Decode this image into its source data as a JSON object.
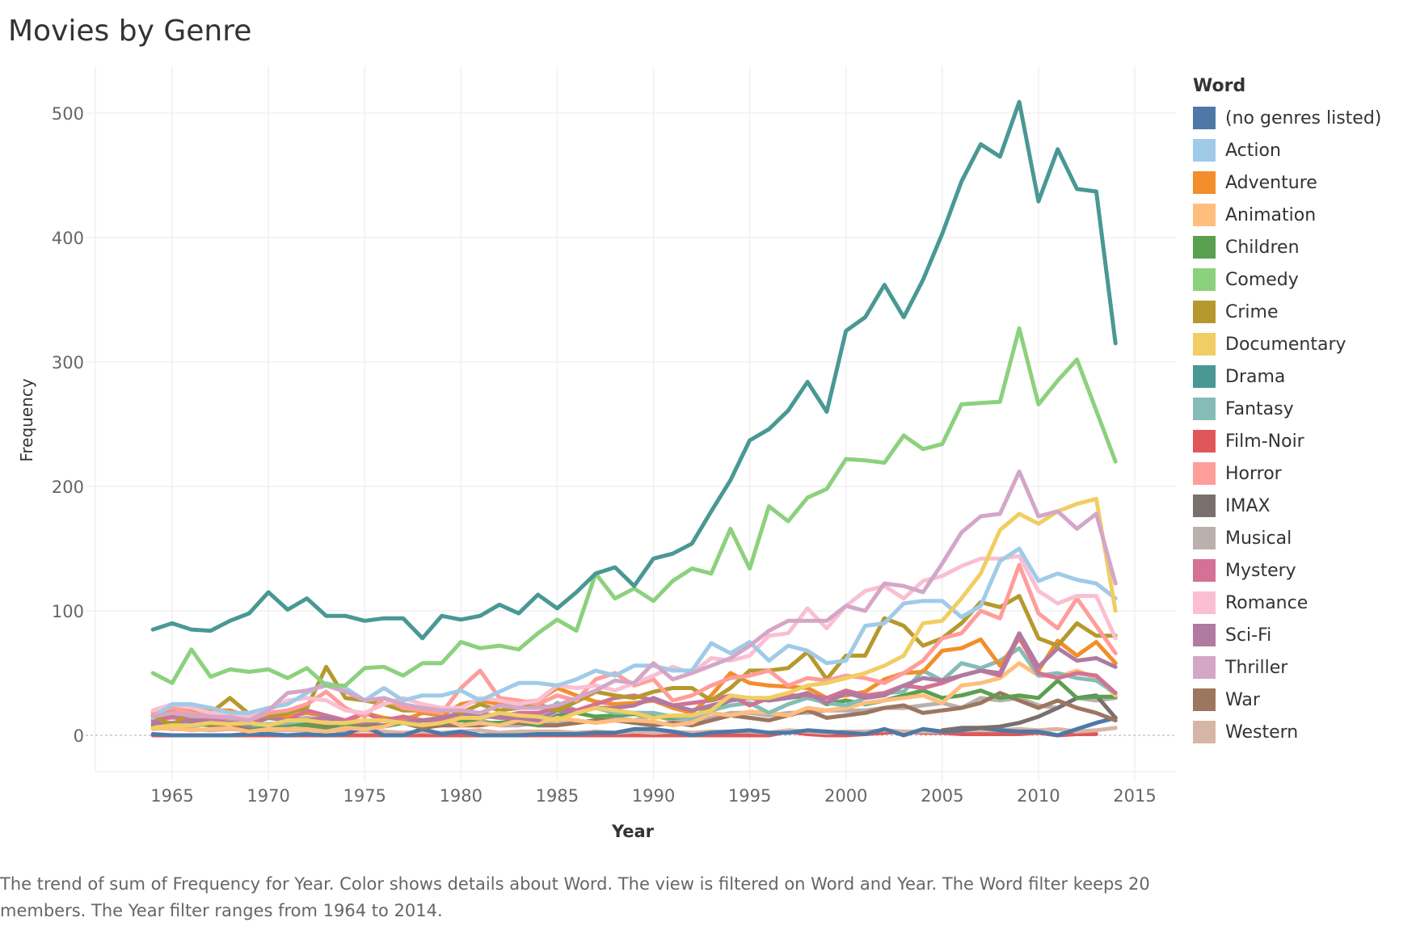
{
  "page": {
    "title": "Movies by Genre"
  },
  "caption": "The trend of sum of Frequency for Year.  Color shows details about Word. The view is filtered on Word and Year. The Word filter keeps 20 members. The Year filter ranges from 1964 to 2014.",
  "legend": {
    "title": "Word",
    "items": [
      {
        "label": "(no genres listed)",
        "color": "#4e79a7"
      },
      {
        "label": "Action",
        "color": "#a0cbe8"
      },
      {
        "label": "Adventure",
        "color": "#f28e2b"
      },
      {
        "label": "Animation",
        "color": "#ffbe7d"
      },
      {
        "label": "Children",
        "color": "#59a14f"
      },
      {
        "label": "Comedy",
        "color": "#8cd17d"
      },
      {
        "label": "Crime",
        "color": "#b6992d"
      },
      {
        "label": "Documentary",
        "color": "#f1ce63"
      },
      {
        "label": "Drama",
        "color": "#499894"
      },
      {
        "label": "Fantasy",
        "color": "#86bcb6"
      },
      {
        "label": "Film-Noir",
        "color": "#e15759"
      },
      {
        "label": "Horror",
        "color": "#ff9d9a"
      },
      {
        "label": "IMAX",
        "color": "#79706e"
      },
      {
        "label": "Musical",
        "color": "#bab0ac"
      },
      {
        "label": "Mystery",
        "color": "#d37295"
      },
      {
        "label": "Romance",
        "color": "#fabfd2"
      },
      {
        "label": "Sci-Fi",
        "color": "#b07aa1"
      },
      {
        "label": "Thriller",
        "color": "#d4a6c8"
      },
      {
        "label": "War",
        "color": "#9d7660"
      },
      {
        "label": "Western",
        "color": "#d7b5a6"
      }
    ]
  },
  "chart_data": {
    "type": "line",
    "title": "Movies by Genre",
    "xlabel": "Year",
    "ylabel": "Frequency",
    "xlim": [
      1960,
      2017
    ],
    "ylim": [
      -27,
      520
    ],
    "xticks": [
      1965,
      1970,
      1975,
      1980,
      1985,
      1990,
      1995,
      2000,
      2005,
      2010,
      2015
    ],
    "yticks": [
      0,
      100,
      200,
      300,
      400,
      500
    ],
    "grid": true,
    "legend_position": "right",
    "x": [
      1964,
      1965,
      1966,
      1967,
      1968,
      1969,
      1970,
      1971,
      1972,
      1973,
      1974,
      1975,
      1976,
      1977,
      1978,
      1979,
      1980,
      1981,
      1982,
      1983,
      1984,
      1985,
      1986,
      1987,
      1988,
      1989,
      1990,
      1991,
      1992,
      1993,
      1994,
      1995,
      1996,
      1997,
      1998,
      1999,
      2000,
      2001,
      2002,
      2003,
      2004,
      2005,
      2006,
      2007,
      2008,
      2009,
      2010,
      2011,
      2012,
      2013,
      2014
    ],
    "series": [
      {
        "name": "(no genres listed)",
        "values": [
          1,
          0,
          0,
          0,
          0,
          1,
          1,
          0,
          1,
          0,
          1,
          7,
          0,
          0,
          5,
          1,
          3,
          0,
          0,
          0,
          1,
          1,
          1,
          2,
          2,
          5,
          5,
          3,
          0,
          2,
          3,
          4,
          2,
          2,
          4,
          3,
          2,
          1,
          5,
          0,
          5,
          3,
          4,
          6,
          4,
          3,
          3,
          0,
          5,
          10,
          14
        ]
      },
      {
        "name": "Action",
        "values": [
          14,
          25,
          25,
          22,
          18,
          18,
          22,
          25,
          34,
          42,
          38,
          28,
          38,
          28,
          32,
          32,
          36,
          28,
          35,
          42,
          42,
          40,
          45,
          52,
          48,
          56,
          56,
          52,
          52,
          74,
          66,
          75,
          60,
          72,
          68,
          58,
          60,
          88,
          90,
          106,
          108,
          108,
          95,
          104,
          140,
          150,
          124,
          130,
          125,
          122,
          110
        ]
      },
      {
        "name": "Adventure",
        "values": [
          15,
          20,
          22,
          20,
          20,
          15,
          17,
          15,
          18,
          15,
          10,
          18,
          14,
          12,
          18,
          16,
          25,
          28,
          25,
          26,
          28,
          38,
          32,
          27,
          25,
          26,
          28,
          22,
          18,
          32,
          50,
          42,
          40,
          39,
          38,
          30,
          32,
          35,
          45,
          50,
          51,
          68,
          70,
          77,
          56,
          78,
          52,
          76,
          64,
          75,
          58
        ]
      },
      {
        "name": "Animation",
        "values": [
          5,
          6,
          4,
          5,
          6,
          3,
          5,
          5,
          5,
          3,
          6,
          5,
          7,
          12,
          10,
          14,
          8,
          10,
          8,
          12,
          10,
          14,
          12,
          10,
          12,
          12,
          11,
          8,
          10,
          18,
          16,
          19,
          18,
          16,
          22,
          20,
          22,
          26,
          28,
          30,
          32,
          26,
          40,
          42,
          46,
          58,
          48,
          47,
          52,
          46,
          32
        ]
      },
      {
        "name": "Children",
        "values": [
          6,
          8,
          8,
          9,
          10,
          7,
          7,
          9,
          8,
          5,
          7,
          6,
          7,
          10,
          8,
          12,
          12,
          10,
          10,
          12,
          8,
          16,
          18,
          15,
          16,
          17,
          15,
          14,
          15,
          22,
          28,
          30,
          28,
          30,
          32,
          25,
          28,
          25,
          28,
          32,
          36,
          30,
          32,
          36,
          30,
          32,
          30,
          44,
          30,
          31,
          31
        ]
      },
      {
        "name": "Comedy",
        "values": [
          50,
          42,
          69,
          47,
          53,
          51,
          53,
          46,
          54,
          40,
          40,
          54,
          55,
          48,
          58,
          58,
          75,
          70,
          72,
          69,
          82,
          93,
          84,
          130,
          110,
          118,
          108,
          124,
          134,
          130,
          166,
          134,
          184,
          172,
          191,
          198,
          222,
          221,
          219,
          241,
          230,
          234,
          266,
          267,
          268,
          327,
          266,
          285,
          302,
          261,
          220
        ]
      },
      {
        "name": "Crime",
        "values": [
          16,
          8,
          20,
          18,
          30,
          17,
          15,
          18,
          22,
          55,
          30,
          28,
          25,
          20,
          20,
          22,
          18,
          25,
          20,
          22,
          25,
          20,
          27,
          35,
          32,
          30,
          35,
          38,
          38,
          28,
          38,
          52,
          52,
          54,
          67,
          45,
          64,
          64,
          94,
          88,
          72,
          78,
          90,
          107,
          103,
          112,
          78,
          72,
          90,
          80,
          80
        ]
      },
      {
        "name": "Documentary",
        "values": [
          6,
          8,
          8,
          10,
          9,
          10,
          8,
          12,
          12,
          10,
          10,
          12,
          12,
          10,
          8,
          10,
          14,
          14,
          18,
          16,
          15,
          12,
          18,
          22,
          20,
          18,
          14,
          16,
          16,
          20,
          32,
          30,
          30,
          34,
          40,
          42,
          46,
          50,
          56,
          64,
          90,
          92,
          110,
          130,
          165,
          178,
          170,
          180,
          186,
          190,
          100
        ]
      },
      {
        "name": "Drama",
        "values": [
          85,
          90,
          85,
          84,
          92,
          98,
          115,
          101,
          110,
          96,
          96,
          92,
          94,
          94,
          78,
          96,
          93,
          96,
          105,
          98,
          113,
          102,
          115,
          130,
          135,
          120,
          142,
          146,
          154,
          180,
          205,
          237,
          246,
          261,
          284,
          260,
          325,
          336,
          362,
          336,
          366,
          403,
          445,
          475,
          465,
          509,
          429,
          471,
          439,
          437,
          315
        ]
      },
      {
        "name": "Fantasy",
        "values": [
          10,
          8,
          12,
          10,
          10,
          8,
          9,
          10,
          12,
          10,
          10,
          12,
          12,
          15,
          12,
          14,
          15,
          14,
          16,
          15,
          14,
          26,
          20,
          22,
          18,
          18,
          18,
          15,
          14,
          20,
          24,
          26,
          18,
          25,
          30,
          26,
          24,
          30,
          34,
          35,
          52,
          44,
          58,
          54,
          60,
          70,
          48,
          50,
          46,
          44,
          34
        ]
      },
      {
        "name": "Film-Noir",
        "values": [
          0,
          0,
          0,
          0,
          0,
          0,
          0,
          0,
          0,
          0,
          0,
          0,
          0,
          0,
          0,
          0,
          0,
          0,
          0,
          0,
          0,
          0,
          0,
          0,
          0,
          0,
          0,
          0,
          0,
          0,
          0,
          0,
          0,
          3,
          1,
          0,
          0,
          1,
          2,
          3,
          2,
          2,
          1,
          1,
          1,
          1,
          2,
          0,
          1,
          1,
          null
        ]
      },
      {
        "name": "Horror",
        "values": [
          18,
          22,
          18,
          15,
          15,
          12,
          18,
          20,
          25,
          35,
          22,
          15,
          30,
          22,
          20,
          18,
          38,
          52,
          30,
          28,
          25,
          32,
          28,
          45,
          50,
          40,
          45,
          28,
          32,
          40,
          46,
          48,
          52,
          40,
          46,
          44,
          48,
          46,
          42,
          50,
          60,
          78,
          82,
          100,
          94,
          137,
          98,
          86,
          110,
          88,
          66
        ]
      },
      {
        "name": "IMAX",
        "values": [
          null,
          null,
          null,
          null,
          null,
          null,
          null,
          null,
          null,
          null,
          null,
          null,
          null,
          null,
          null,
          null,
          null,
          null,
          null,
          null,
          null,
          null,
          null,
          null,
          null,
          null,
          null,
          null,
          null,
          null,
          null,
          null,
          null,
          null,
          null,
          null,
          null,
          null,
          null,
          null,
          null,
          4,
          6,
          6,
          7,
          10,
          15,
          22,
          30,
          32,
          14
        ]
      },
      {
        "name": "Musical",
        "values": [
          12,
          14,
          14,
          12,
          12,
          10,
          14,
          12,
          14,
          12,
          10,
          12,
          12,
          10,
          8,
          8,
          12,
          12,
          8,
          8,
          10,
          10,
          10,
          12,
          14,
          12,
          16,
          12,
          12,
          14,
          18,
          18,
          16,
          18,
          18,
          20,
          20,
          20,
          22,
          22,
          24,
          26,
          22,
          30,
          28,
          30,
          24,
          22,
          30,
          28,
          30
        ]
      },
      {
        "name": "Mystery",
        "values": [
          12,
          15,
          12,
          12,
          14,
          10,
          14,
          12,
          20,
          16,
          12,
          18,
          12,
          15,
          12,
          12,
          15,
          18,
          15,
          18,
          18,
          22,
          20,
          25,
          30,
          32,
          28,
          24,
          26,
          28,
          32,
          24,
          30,
          32,
          32,
          30,
          36,
          32,
          34,
          40,
          38,
          42,
          48,
          52,
          48,
          80,
          50,
          46,
          50,
          48,
          34
        ]
      },
      {
        "name": "Romance",
        "values": [
          20,
          25,
          22,
          18,
          18,
          15,
          20,
          28,
          30,
          28,
          20,
          18,
          25,
          30,
          25,
          22,
          22,
          30,
          28,
          25,
          28,
          40,
          38,
          40,
          36,
          42,
          48,
          55,
          50,
          62,
          60,
          64,
          80,
          82,
          102,
          86,
          104,
          116,
          120,
          110,
          124,
          128,
          136,
          142,
          142,
          144,
          116,
          106,
          112,
          112,
          78
        ]
      },
      {
        "name": "Sci-Fi",
        "values": [
          10,
          10,
          12,
          10,
          10,
          8,
          14,
          12,
          12,
          14,
          10,
          10,
          12,
          10,
          12,
          14,
          18,
          16,
          14,
          14,
          12,
          20,
          18,
          22,
          22,
          24,
          30,
          24,
          20,
          24,
          28,
          30,
          28,
          30,
          34,
          26,
          34,
          30,
          32,
          40,
          46,
          44,
          48,
          52,
          50,
          82,
          55,
          70,
          60,
          62,
          55
        ]
      },
      {
        "name": "Thriller",
        "values": [
          15,
          18,
          16,
          15,
          14,
          12,
          20,
          34,
          36,
          40,
          35,
          28,
          30,
          25,
          22,
          20,
          20,
          18,
          24,
          22,
          22,
          24,
          30,
          36,
          44,
          42,
          58,
          45,
          50,
          56,
          62,
          72,
          84,
          92,
          92,
          92,
          104,
          100,
          122,
          120,
          115,
          138,
          163,
          176,
          178,
          212,
          176,
          180,
          166,
          178,
          122
        ]
      },
      {
        "name": "War",
        "values": [
          8,
          8,
          10,
          8,
          8,
          6,
          8,
          8,
          10,
          8,
          6,
          8,
          8,
          10,
          6,
          8,
          8,
          8,
          10,
          10,
          8,
          8,
          10,
          12,
          12,
          10,
          8,
          10,
          8,
          12,
          16,
          14,
          12,
          16,
          20,
          14,
          16,
          18,
          22,
          24,
          18,
          20,
          22,
          26,
          34,
          28,
          22,
          28,
          22,
          18,
          12
        ]
      },
      {
        "name": "Western",
        "values": [
          6,
          5,
          5,
          4,
          5,
          4,
          4,
          4,
          4,
          5,
          3,
          4,
          3,
          2,
          3,
          2,
          3,
          4,
          2,
          3,
          3,
          3,
          2,
          3,
          2,
          3,
          2,
          3,
          2,
          3,
          3,
          3,
          2,
          4,
          3,
          2,
          3,
          3,
          4,
          3,
          3,
          3,
          4,
          4,
          4,
          5,
          4,
          5,
          3,
          4,
          6
        ]
      }
    ]
  }
}
